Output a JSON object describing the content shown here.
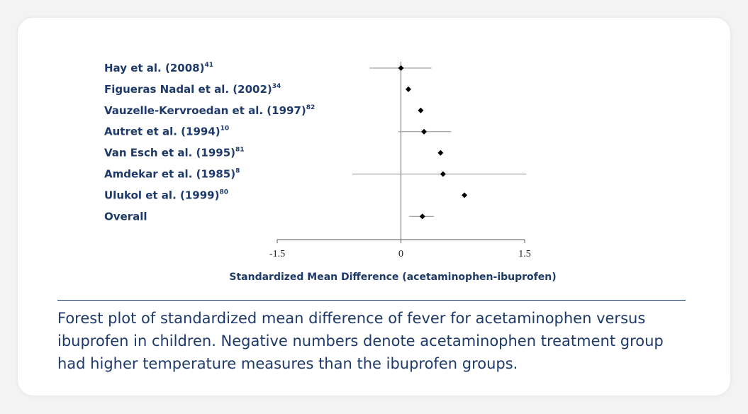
{
  "chart_data": {
    "type": "forest",
    "studies": [
      {
        "label": "Hay et al. (2008)",
        "ref": "41",
        "estimate": 0.0,
        "lower": -0.38,
        "upper": 0.37
      },
      {
        "label": "Figueras Nadal et al. (2002)",
        "ref": "34",
        "estimate": 0.09
      },
      {
        "label": "Vauzelle-Kervroedan et al. (1997)",
        "ref": "82",
        "estimate": 0.24
      },
      {
        "label": "Autret et al. (1994)",
        "ref": "10",
        "estimate": 0.28,
        "lower": -0.03,
        "upper": 0.61
      },
      {
        "label": "Van Esch et al. (1995)",
        "ref": "81",
        "estimate": 0.48
      },
      {
        "label": "Amdekar et al. (1985)",
        "ref": "8",
        "estimate": 0.51,
        "lower": -0.59,
        "upper": 1.52
      },
      {
        "label": "Ulukol et al. (1999)",
        "ref": "80",
        "estimate": 0.77
      },
      {
        "label": "Overall",
        "estimate": 0.26,
        "lower": 0.1,
        "upper": 0.4
      }
    ],
    "xlim": [
      -1.5,
      1.5
    ],
    "xticks": [
      -1.5,
      0,
      1.5
    ],
    "reference_line": 0,
    "x_label": "Standardized Mean Difference (acetaminophen-ibuprofen)",
    "caption": "Forest plot of standardized mean difference of fever for acetaminophen versus ibuprofen in children. Negative numbers denote acetaminophen treatment group had higher temperature measures than the ibuprofen groups.",
    "marker_color": "#000000",
    "ci_color": "#8c8c8c"
  }
}
